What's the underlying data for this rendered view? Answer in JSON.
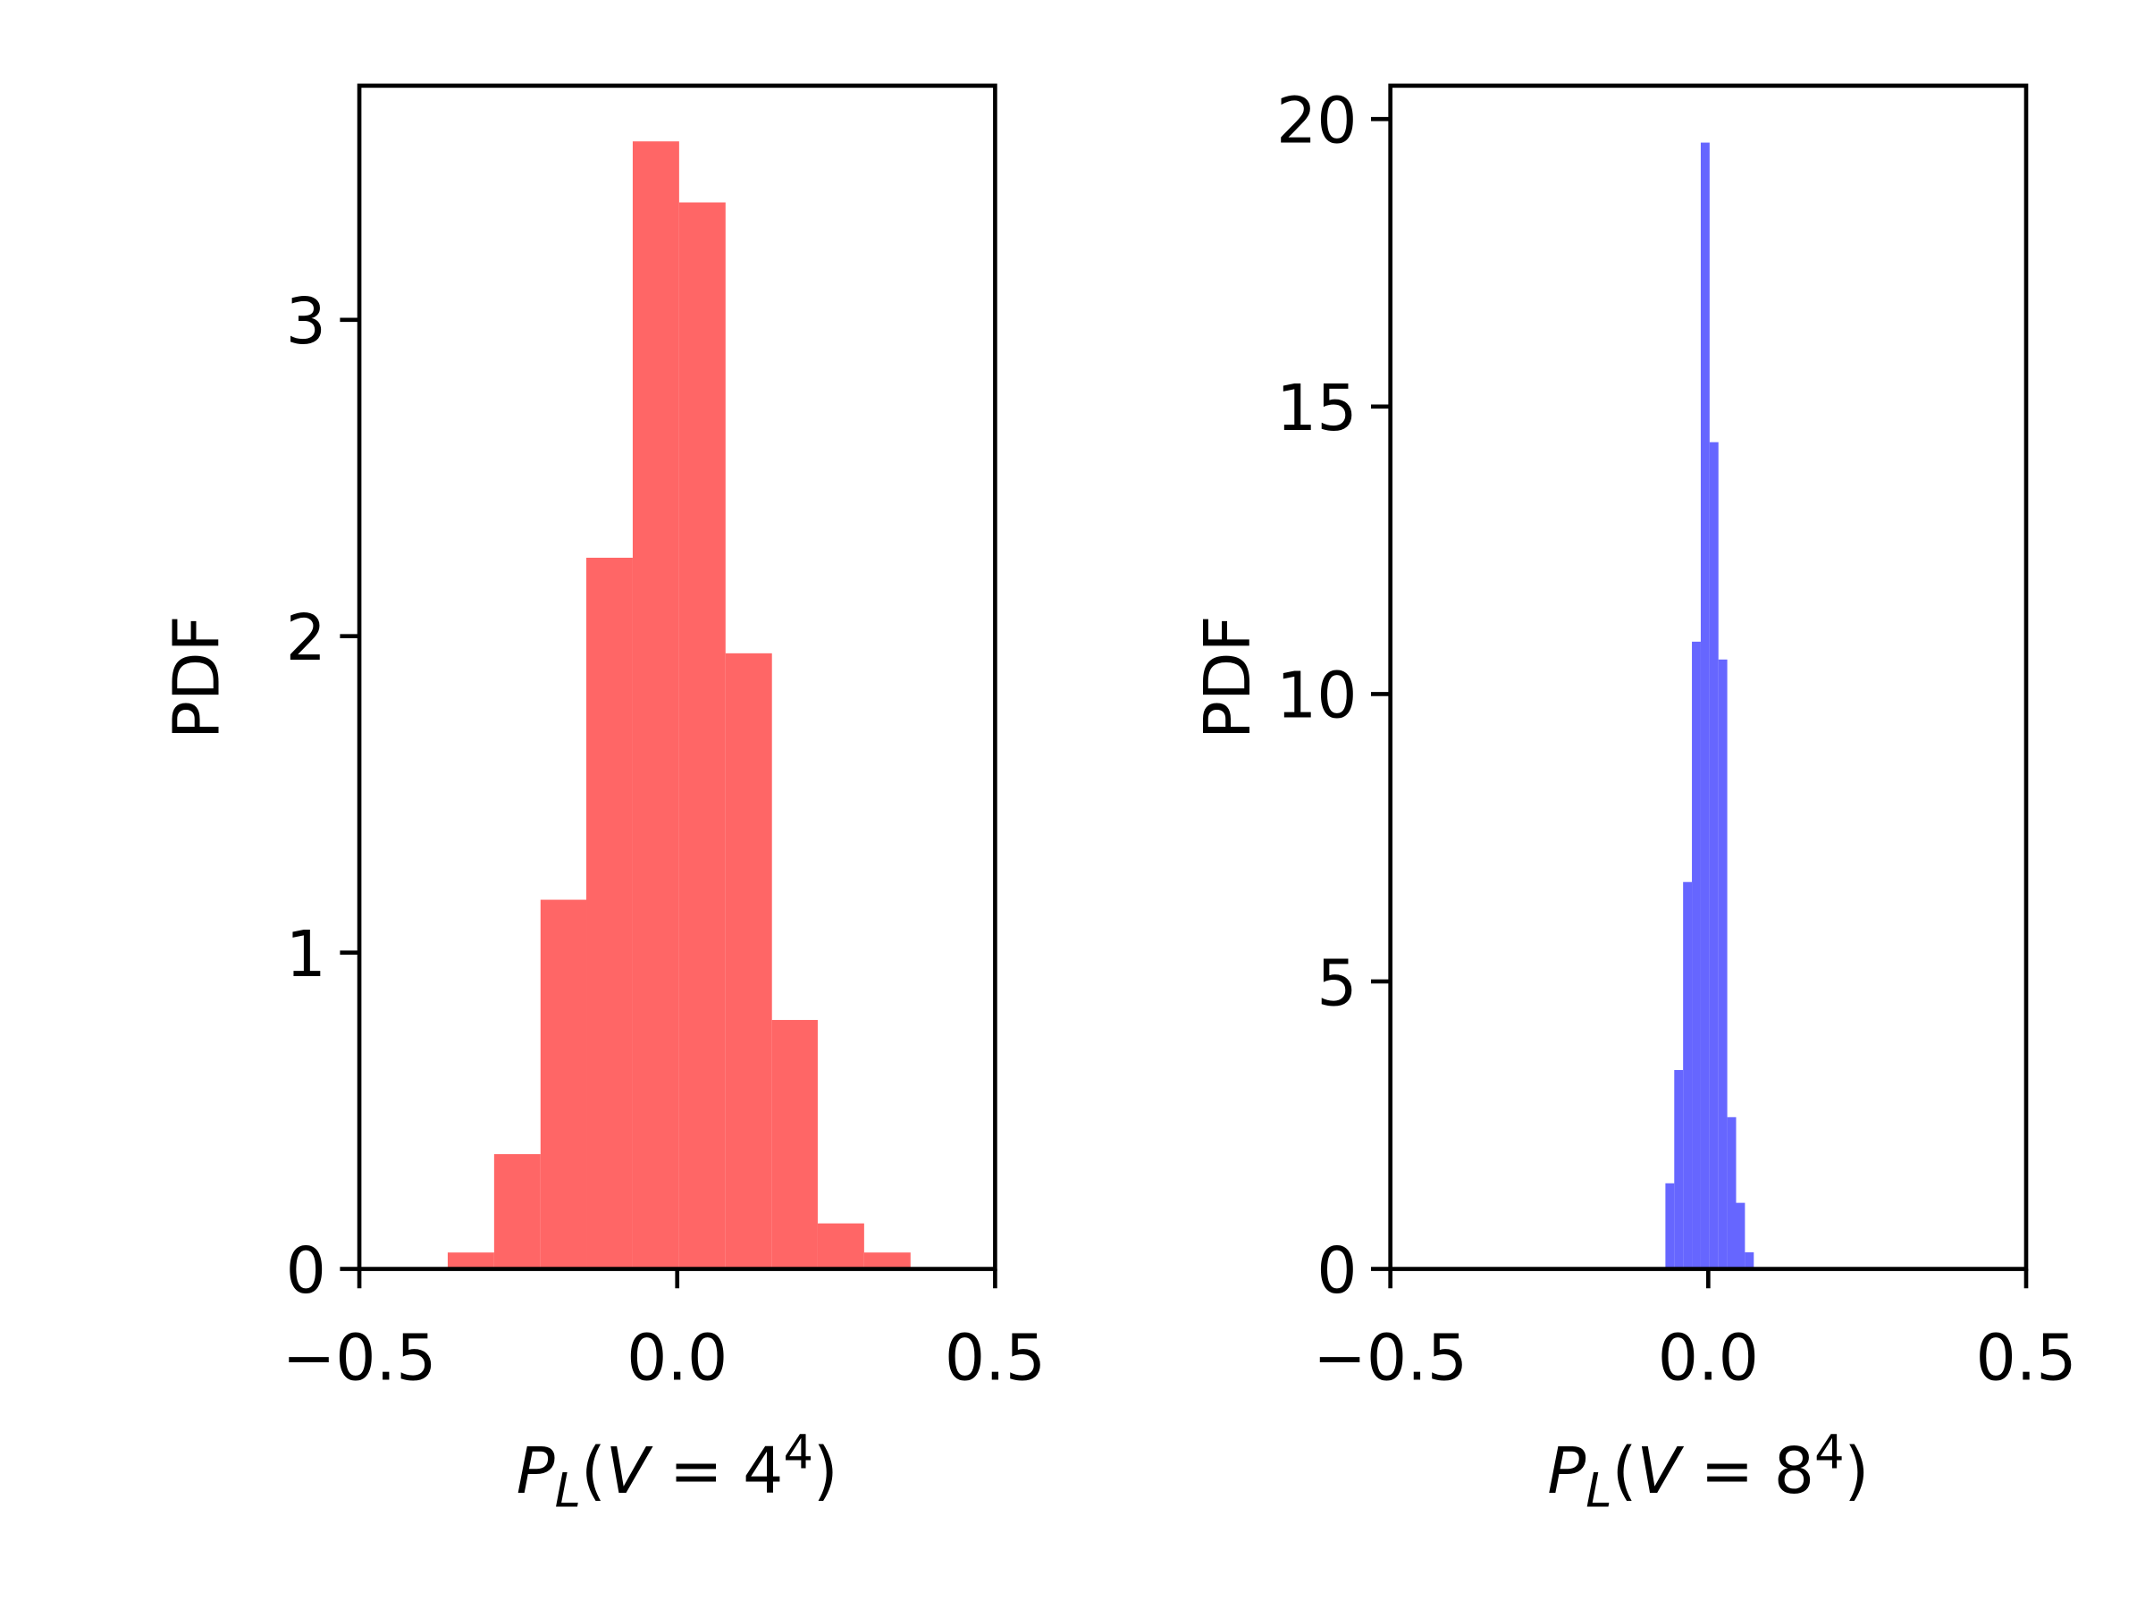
{
  "chart_data": [
    {
      "type": "histogram",
      "color": "#ff6666",
      "bins": [
        -0.361,
        -0.288,
        -0.215,
        -0.143,
        -0.07,
        0.003,
        0.076,
        0.149,
        0.221,
        0.294,
        0.367
      ],
      "values": [
        0.052,
        0.363,
        1.167,
        2.248,
        3.564,
        3.371,
        1.946,
        0.787,
        0.144,
        0.052
      ],
      "xlim": [
        -0.5,
        0.5
      ],
      "ylim": [
        0,
        3.74
      ],
      "xticks": [
        {
          "value": -0.5,
          "label": "−0.5"
        },
        {
          "value": 0,
          "label": "0.0"
        },
        0.5
      ],
      "yticks": [
        0,
        1,
        2,
        3
      ],
      "xlabel": "P_{L}(V = 4^{4})",
      "ylabel": "PDF"
    },
    {
      "type": "histogram",
      "color": "#6666ff",
      "bins": [
        -0.0674,
        -0.0535,
        -0.0396,
        -0.0257,
        -0.0118,
        0.0021,
        0.016,
        0.0299,
        0.0438,
        0.0577,
        0.0716
      ],
      "values": [
        1.49,
        3.46,
        6.73,
        10.91,
        19.59,
        14.38,
        10.6,
        2.64,
        1.15,
        0.29
      ],
      "xlim": [
        -0.5,
        0.5
      ],
      "ylim": [
        0,
        20.58
      ],
      "xticks": [
        {
          "value": -0.5,
          "label": "−0.5"
        },
        {
          "value": 0,
          "label": "0.0"
        },
        0.5
      ],
      "yticks": [
        0,
        5,
        10,
        15,
        20
      ],
      "xlabel": "P_{L}(V = 8^{4})",
      "ylabel": "PDF"
    }
  ]
}
